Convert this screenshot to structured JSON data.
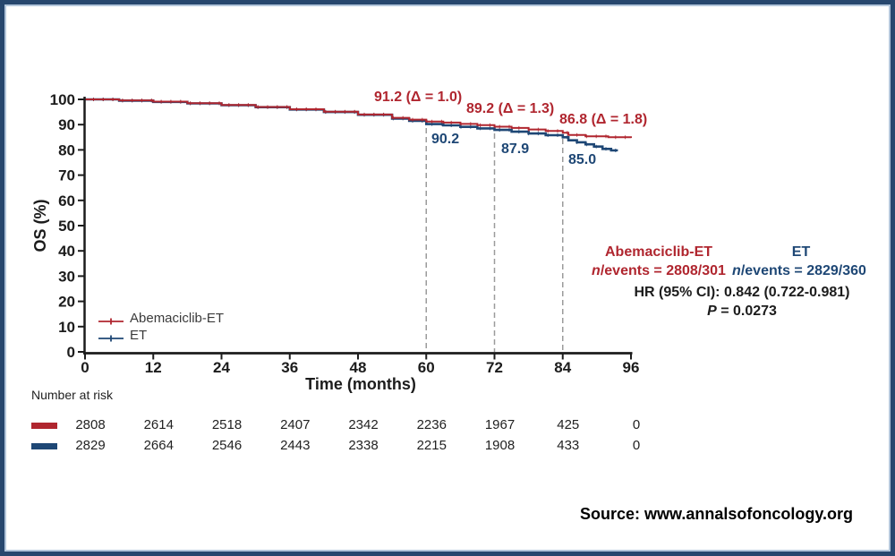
{
  "colors": {
    "abemaciclib": "#b0262f",
    "et": "#1e4775",
    "axis": "#1c1c1c",
    "dashed_line": "#9b9b9b",
    "frame_border": "#27476e",
    "frame_inner_line": "#b3c6db"
  },
  "chart_data": {
    "type": "line",
    "subtype": "kaplan-meier-step",
    "title": "",
    "xlabel": "Time (months)",
    "ylabel": "OS (%)",
    "xlim": [
      0,
      96
    ],
    "ylim": [
      0,
      100
    ],
    "xticks": [
      0,
      12,
      24,
      36,
      48,
      60,
      72,
      84,
      96
    ],
    "yticks": [
      100,
      90,
      80,
      70,
      60,
      50,
      40,
      30,
      20,
      10,
      0
    ],
    "grid": false,
    "legend_position": "lower-left-inside",
    "dashed_reference_x": [
      60,
      72,
      84
    ],
    "series": [
      {
        "name": "Abemaciclib-ET",
        "color": "#b0262f",
        "points": [
          [
            0,
            100
          ],
          [
            6,
            99.6
          ],
          [
            12,
            99.1
          ],
          [
            18,
            98.5
          ],
          [
            24,
            97.8
          ],
          [
            30,
            97.0
          ],
          [
            36,
            96.1
          ],
          [
            42,
            95.1
          ],
          [
            48,
            94.0
          ],
          [
            54,
            92.7
          ],
          [
            57,
            92.0
          ],
          [
            60,
            91.2
          ],
          [
            63,
            90.8
          ],
          [
            66,
            90.3
          ],
          [
            69,
            89.8
          ],
          [
            72,
            89.2
          ],
          [
            75,
            88.7
          ],
          [
            78,
            88.1
          ],
          [
            81,
            87.5
          ],
          [
            84,
            86.8
          ],
          [
            85,
            85.9
          ],
          [
            88,
            85.4
          ],
          [
            92,
            85.0
          ],
          [
            96,
            84.7
          ]
        ]
      },
      {
        "name": "ET",
        "color": "#1e4775",
        "points": [
          [
            0,
            100
          ],
          [
            6,
            99.5
          ],
          [
            12,
            99.0
          ],
          [
            18,
            98.4
          ],
          [
            24,
            97.7
          ],
          [
            30,
            96.9
          ],
          [
            36,
            96.0
          ],
          [
            42,
            95.0
          ],
          [
            48,
            93.9
          ],
          [
            54,
            92.4
          ],
          [
            57,
            91.5
          ],
          [
            60,
            90.2
          ],
          [
            63,
            89.7
          ],
          [
            66,
            89.1
          ],
          [
            69,
            88.5
          ],
          [
            72,
            87.9
          ],
          [
            75,
            87.2
          ],
          [
            78,
            86.5
          ],
          [
            81,
            85.8
          ],
          [
            84,
            85.0
          ],
          [
            85,
            83.8
          ],
          [
            86.5,
            83.0
          ],
          [
            88,
            82.2
          ],
          [
            89.5,
            81.3
          ],
          [
            91,
            80.4
          ],
          [
            92.5,
            79.8
          ],
          [
            93.5,
            79.4
          ]
        ]
      }
    ],
    "milestones": {
      "months": [
        60,
        72,
        84
      ],
      "abemaciclib_os_pct": [
        91.2,
        89.2,
        86.8
      ],
      "et_os_pct": [
        90.2,
        87.9,
        85.0
      ],
      "delta": [
        1.0,
        1.3,
        1.8
      ]
    }
  },
  "annotations": {
    "abemaciclib": [
      {
        "text": "91.2 (Δ = 1.0)"
      },
      {
        "text": "89.2 (Δ = 1.3)"
      },
      {
        "text": "86.8 (Δ = 1.8)"
      }
    ],
    "et": [
      {
        "text": "90.2"
      },
      {
        "text": "87.9"
      },
      {
        "text": "85.0"
      }
    ]
  },
  "stats": {
    "arm1_name": "Abemaciclib-ET",
    "arm1_n_italic": "n",
    "arm1_events_rest": "/events = 2808/301",
    "arm2_name": "ET",
    "arm2_n_italic": "n",
    "arm2_events_rest": "/events = 2829/360",
    "hr_text": "HR (95% CI): 0.842 (0.722-0.981)",
    "p_italic": "P",
    "p_rest": " = 0.0273"
  },
  "risk_table": {
    "label": "Number at risk",
    "months": [
      0,
      12,
      24,
      36,
      48,
      60,
      72,
      84,
      96
    ],
    "rows": [
      {
        "series": "Abemaciclib-ET",
        "color": "#b0262f",
        "counts": [
          "2808",
          "2614",
          "2518",
          "2407",
          "2342",
          "2236",
          "1967",
          "425",
          "0"
        ]
      },
      {
        "series": "ET",
        "color": "#1e4775",
        "counts": [
          "2829",
          "2664",
          "2546",
          "2443",
          "2338",
          "2215",
          "1908",
          "433",
          "0"
        ]
      }
    ]
  },
  "source": {
    "text": "Source: www.annalsofoncology.org"
  }
}
